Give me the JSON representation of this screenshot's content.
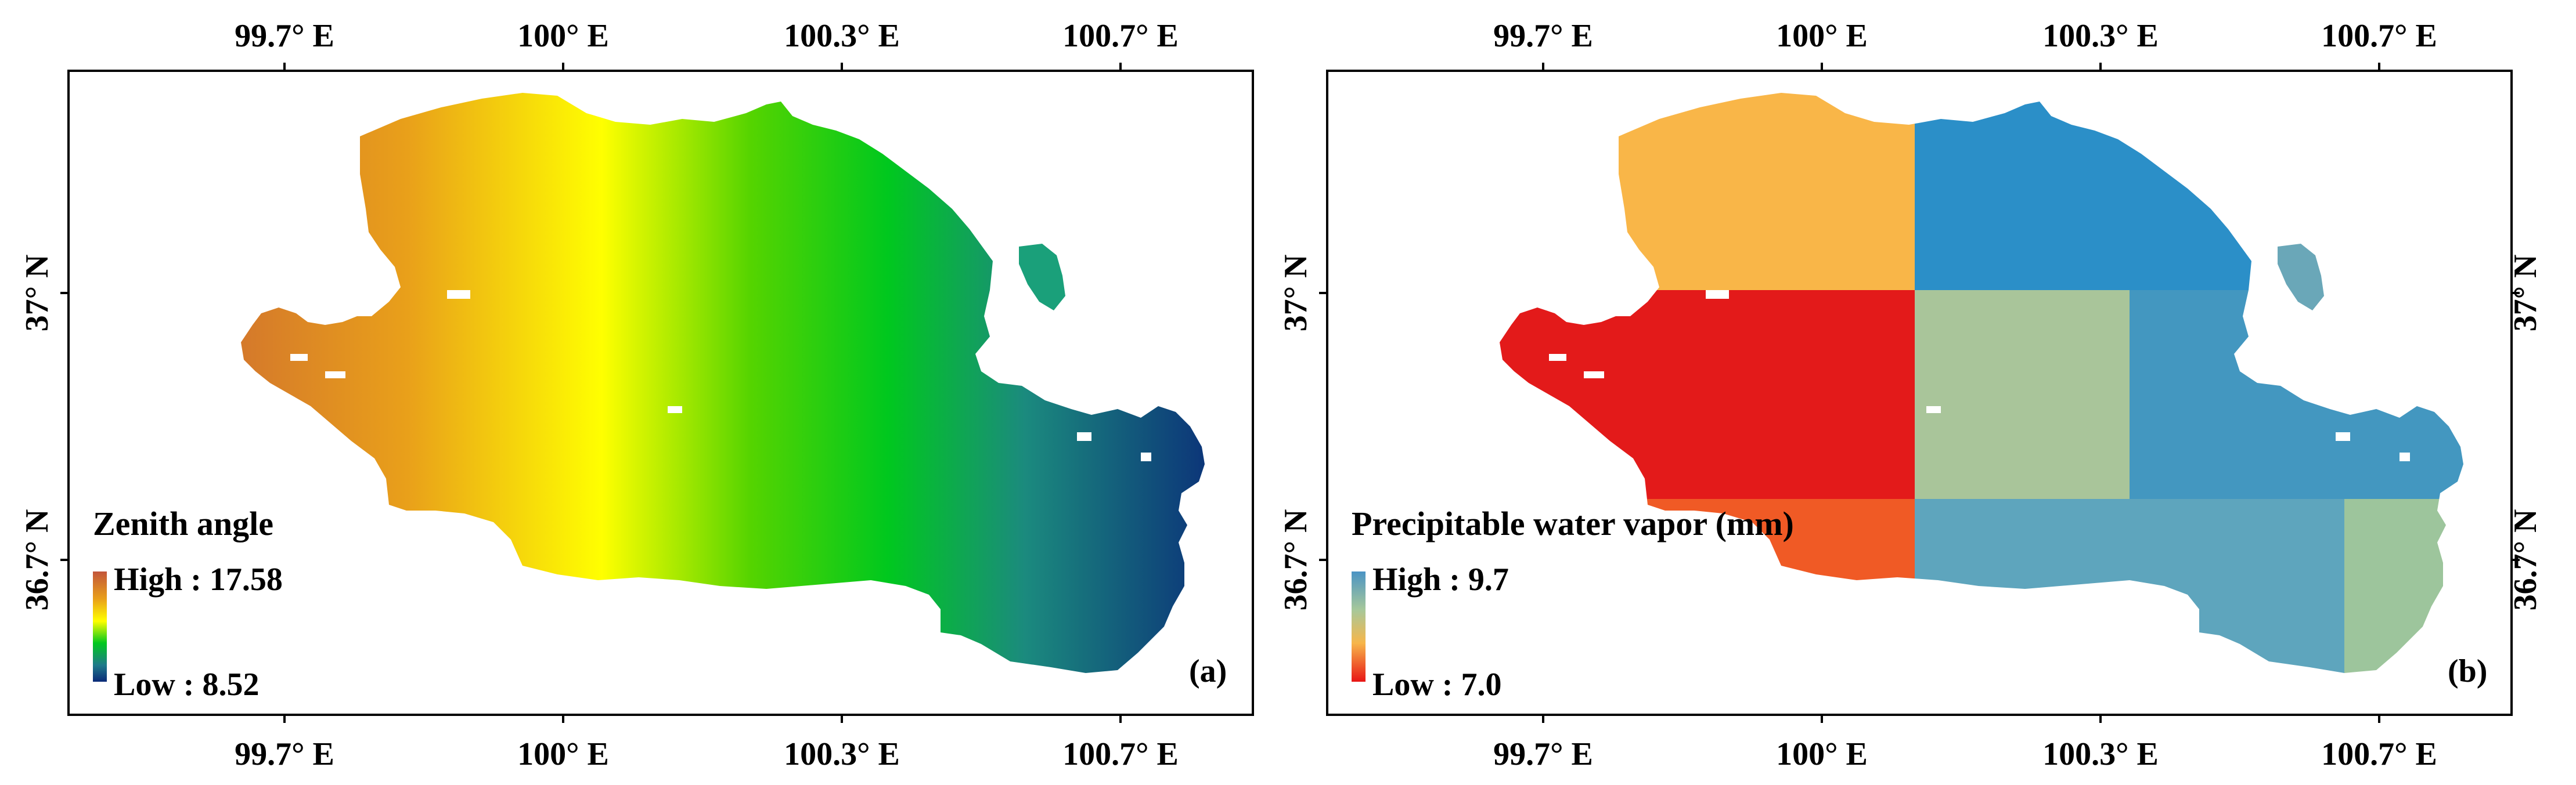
{
  "figure": {
    "panels": [
      {
        "id": "a",
        "label": "(a)",
        "x_ticks": [
          "99.7° E",
          "100° E",
          "100.3° E",
          "100.7° E"
        ],
        "y_ticks": [
          "37° N",
          "36.7° N"
        ],
        "legend": {
          "title": "Zenith angle",
          "high": "High : 17.58",
          "low": "Low : 8.52",
          "ramp_colors": [
            "#c2553a",
            "#e9a01a",
            "#ffff00",
            "#00c81e",
            "#1e7a8a",
            "#0a2a78"
          ]
        }
      },
      {
        "id": "b",
        "label": "(b)",
        "x_ticks": [
          "99.7° E",
          "100° E",
          "100.3° E",
          "100.7° E"
        ],
        "y_ticks": [
          "37° N",
          "36.7° N"
        ],
        "legend": {
          "title": "Precipitable water vapor (mm)",
          "high": "High : 9.7",
          "low": "Low : 7.0",
          "ramp_colors": [
            "#4a93c4",
            "#a7c89a",
            "#f7b64a",
            "#e81515"
          ]
        },
        "zone_colors": {
          "orange": "#f9b648",
          "blue": "#2b8fc8",
          "red": "#e31a1a",
          "green": "#a9c59a",
          "steel": "#4397c0",
          "slate": "#5ea5bd",
          "pale_green": "#9dc59c",
          "orange_red": "#f05a25"
        }
      }
    ]
  }
}
